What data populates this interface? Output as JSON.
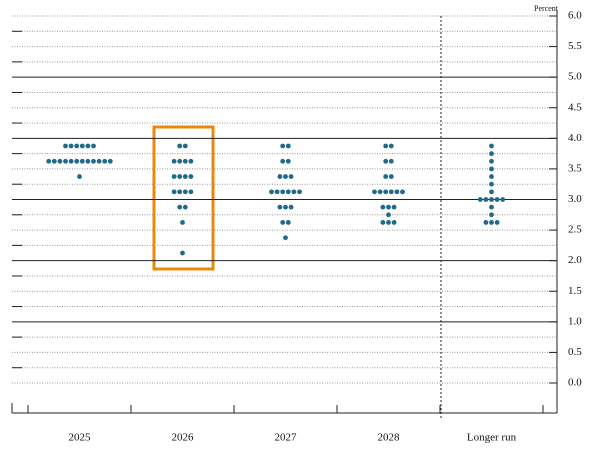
{
  "chart_data": {
    "type": "dot",
    "y_axis_label": "Percent",
    "categories": [
      "2025",
      "2026",
      "2027",
      "2028",
      "Longer run"
    ],
    "values": [
      [
        3.875,
        3.875,
        3.875,
        3.875,
        3.875,
        3.875,
        3.625,
        3.625,
        3.625,
        3.625,
        3.625,
        3.625,
        3.625,
        3.625,
        3.625,
        3.625,
        3.625,
        3.625,
        3.375
      ],
      [
        3.875,
        3.875,
        3.625,
        3.625,
        3.625,
        3.625,
        3.375,
        3.375,
        3.375,
        3.375,
        3.125,
        3.125,
        3.125,
        3.125,
        2.875,
        2.875,
        2.625,
        2.125
      ],
      [
        3.875,
        3.875,
        3.625,
        3.625,
        3.375,
        3.375,
        3.375,
        3.125,
        3.125,
        3.125,
        3.125,
        3.125,
        3.125,
        2.875,
        2.875,
        2.875,
        2.625,
        2.625,
        2.375
      ],
      [
        3.875,
        3.875,
        3.625,
        3.625,
        3.375,
        3.375,
        3.125,
        3.125,
        3.125,
        3.125,
        3.125,
        3.125,
        2.875,
        2.875,
        2.875,
        2.75,
        2.625,
        2.625,
        2.625
      ],
      [
        3.875,
        3.75,
        3.625,
        3.5,
        3.375,
        3.25,
        3.125,
        3.0,
        3.0,
        3.0,
        3.0,
        3.0,
        2.875,
        2.75,
        2.625,
        2.625,
        2.625
      ]
    ],
    "color": "#1f6a8a",
    "ylim": [
      -0.5,
      6.1
    ],
    "yticks": [
      {
        "value": 0,
        "label": "0.0"
      },
      {
        "value": 0.5,
        "label": "0.5"
      },
      {
        "value": 1,
        "label": "1.0"
      },
      {
        "value": 1.5,
        "label": "1.5"
      },
      {
        "value": 2,
        "label": "2.0"
      },
      {
        "value": 2.5,
        "label": "2.5"
      },
      {
        "value": 3,
        "label": "3.0"
      },
      {
        "value": 3.5,
        "label": "3.5"
      },
      {
        "value": 4,
        "label": "4.0"
      },
      {
        "value": 4.5,
        "label": "4.5"
      },
      {
        "value": 5,
        "label": "5.0"
      },
      {
        "value": 5.5,
        "label": "5.5"
      },
      {
        "value": 6,
        "label": "6.0"
      }
    ],
    "minor_yticks": [
      0.25,
      0.75,
      1.25,
      1.75,
      2.25,
      2.75,
      3.25,
      3.75,
      4.25,
      4.75,
      5.25,
      5.75
    ],
    "grid": true
  }
}
